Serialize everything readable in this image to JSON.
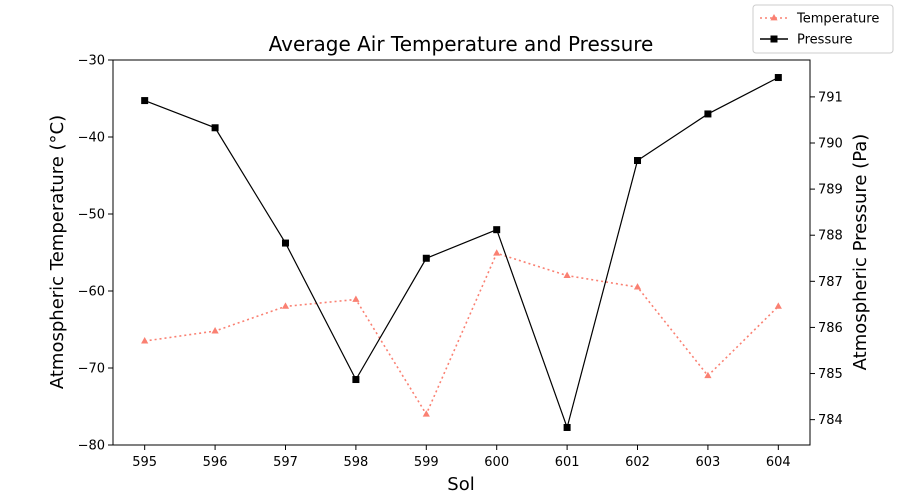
{
  "chart_data": {
    "type": "line",
    "title": "Average Air Temperature and Pressure",
    "xlabel": "Sol",
    "ylabel_left": "Atmospheric Temperature (°C)",
    "ylabel_right": "Atmospheric Pressure (Pa)",
    "x": [
      595,
      596,
      597,
      598,
      599,
      600,
      601,
      602,
      603,
      604
    ],
    "xlim": [
      594.55,
      604.45
    ],
    "ylim_left": [
      -80,
      -30
    ],
    "ylim_right": [
      783.45,
      791.8
    ],
    "left_ticks": [
      -80,
      -70,
      -60,
      -50,
      -40,
      -30
    ],
    "right_ticks": [
      784,
      785,
      786,
      787,
      788,
      789,
      790,
      791
    ],
    "grid": false,
    "legend_position": "top-right",
    "series": [
      {
        "name": "Temperature",
        "axis": "left",
        "color": "#fa8072",
        "line_style": "dotted",
        "marker": "triangle",
        "values": [
          -66.5,
          -65.2,
          -62.0,
          -61.1,
          -76.0,
          -55.1,
          -58.0,
          -59.5,
          -71.0,
          -62.0
        ]
      },
      {
        "name": "Pressure",
        "axis": "right",
        "color": "#000000",
        "line_style": "solid",
        "marker": "square",
        "values": [
          790.92,
          790.33,
          787.83,
          784.87,
          787.5,
          788.12,
          783.83,
          789.62,
          790.63,
          791.42
        ]
      }
    ]
  }
}
